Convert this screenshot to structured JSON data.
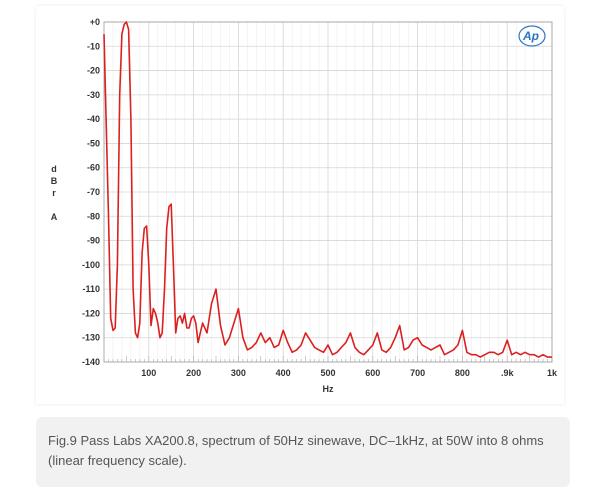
{
  "caption": "Fig.9 Pass Labs XA200.8, spectrum of 50Hz sinewave, DC–1kHz, at 50W into 8 ohms (linear frequency scale).",
  "logo_text": "Ap",
  "colors": {
    "trace": "#dc2020",
    "grid": "#d6d6d6",
    "logo": "#2a74c4",
    "caption_bg": "#f1f1f1"
  },
  "chart_data": {
    "type": "line",
    "title": "",
    "xlabel": "Hz",
    "ylabel_letters": [
      "d",
      "B",
      "r",
      "",
      "A"
    ],
    "xlim": [
      0,
      1000
    ],
    "ylim": [
      -140,
      0
    ],
    "grid": true,
    "x_ticks": [
      {
        "value": 100,
        "label": "100"
      },
      {
        "value": 200,
        "label": "200"
      },
      {
        "value": 300,
        "label": "300"
      },
      {
        "value": 400,
        "label": "400"
      },
      {
        "value": 500,
        "label": "500"
      },
      {
        "value": 600,
        "label": "600"
      },
      {
        "value": 700,
        "label": "700"
      },
      {
        "value": 800,
        "label": "800"
      },
      {
        "value": 900,
        "label": ".9k"
      },
      {
        "value": 1000,
        "label": "1k"
      }
    ],
    "y_ticks": [
      {
        "value": 0,
        "label": "+0"
      },
      {
        "value": -10,
        "label": "-10"
      },
      {
        "value": -20,
        "label": "-20"
      },
      {
        "value": -30,
        "label": "-30"
      },
      {
        "value": -40,
        "label": "-40"
      },
      {
        "value": -50,
        "label": "-50"
      },
      {
        "value": -60,
        "label": "-60"
      },
      {
        "value": -70,
        "label": "-70"
      },
      {
        "value": -80,
        "label": "-80"
      },
      {
        "value": -90,
        "label": "-90"
      },
      {
        "value": -100,
        "label": "-100"
      },
      {
        "value": -110,
        "label": "-110"
      },
      {
        "value": -120,
        "label": "-120"
      },
      {
        "value": -130,
        "label": "-130"
      },
      {
        "value": -140,
        "label": "-140"
      }
    ],
    "series": [
      {
        "x": [
          0,
          10,
          15,
          20,
          25,
          30,
          35,
          40,
          45,
          50,
          55,
          60,
          65,
          70,
          75,
          80,
          85,
          90,
          95,
          100,
          105,
          110,
          115,
          120,
          125,
          130,
          135,
          140,
          145,
          150,
          155,
          160,
          165,
          170,
          175,
          180,
          185,
          190,
          195,
          200,
          205,
          210,
          215,
          220,
          230,
          240,
          250,
          260,
          270,
          280,
          290,
          300,
          310,
          320,
          330,
          340,
          350,
          360,
          370,
          380,
          390,
          400,
          410,
          420,
          430,
          440,
          450,
          460,
          470,
          480,
          490,
          500,
          510,
          520,
          530,
          540,
          550,
          560,
          570,
          580,
          590,
          600,
          610,
          620,
          630,
          640,
          650,
          660,
          670,
          680,
          690,
          700,
          710,
          720,
          730,
          740,
          750,
          760,
          770,
          780,
          790,
          800,
          810,
          820,
          830,
          840,
          850,
          860,
          870,
          880,
          890,
          900,
          910,
          920,
          930,
          940,
          950,
          960,
          970,
          980,
          990,
          1000
        ],
        "y": [
          -5,
          -80,
          -122,
          -127,
          -126,
          -100,
          -30,
          -5,
          -1,
          0,
          -3,
          -40,
          -110,
          -128,
          -130,
          -124,
          -95,
          -85,
          -84,
          -100,
          -125,
          -118,
          -120,
          -124,
          -130,
          -128,
          -110,
          -85,
          -76,
          -75,
          -100,
          -128,
          -122,
          -121,
          -124,
          -120,
          -126,
          -126,
          -122,
          -121,
          -124,
          -132,
          -128,
          -124,
          -128,
          -116,
          -110,
          -125,
          -133,
          -130,
          -124,
          -118,
          -130,
          -135,
          -134,
          -132,
          -128,
          -132,
          -130,
          -134,
          -133,
          -127,
          -132,
          -136,
          -135,
          -133,
          -128,
          -131,
          -134,
          -135,
          -136,
          -133,
          -137,
          -136,
          -134,
          -132,
          -128,
          -134,
          -136,
          -137,
          -135,
          -133,
          -128,
          -135,
          -136,
          -134,
          -130,
          -125,
          -135,
          -134,
          -131,
          -130,
          -133,
          -134,
          -135,
          -134,
          -133,
          -137,
          -136,
          -135,
          -133,
          -127,
          -136,
          -137,
          -137,
          -138,
          -137,
          -136,
          -136,
          -137,
          -136,
          -131,
          -137,
          -136,
          -137,
          -136,
          -137,
          -137,
          -138,
          -137,
          -138,
          -138
        ]
      }
    ]
  }
}
